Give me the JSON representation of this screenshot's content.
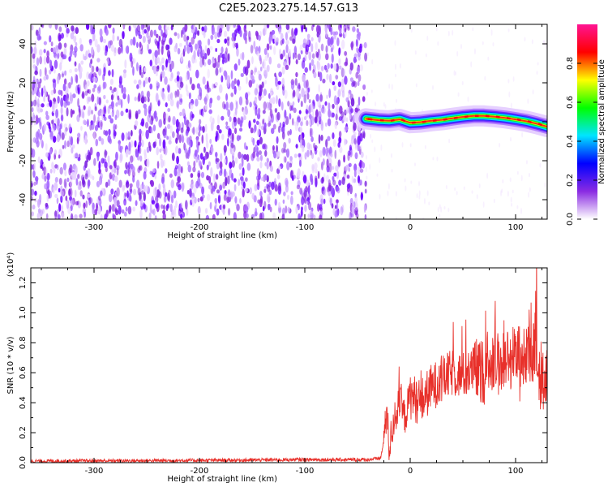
{
  "title": "C2E5.2023.275.14.57.G13",
  "chart_data": [
    {
      "type": "heatmap",
      "xlabel": "Height of straight line (km)",
      "ylabel": "Frequency (Hz)",
      "xlim": [
        -360,
        130
      ],
      "ylim": [
        -50,
        50
      ],
      "x_ticks": [
        -300,
        -200,
        -100,
        0,
        100
      ],
      "x_tick_labels": [
        "-300",
        "-200",
        "-100",
        "0",
        "100"
      ],
      "y_ticks": [
        -40,
        -20,
        0,
        20,
        40
      ],
      "y_tick_labels": [
        "-40",
        "-20",
        "0",
        "20",
        "40"
      ],
      "noise_region_x": [
        -360,
        -42
      ],
      "signal_region_x": [
        -42,
        130
      ],
      "signal_track": [
        {
          "x": -42,
          "freq": 1.5
        },
        {
          "x": -30,
          "freq": 0.8
        },
        {
          "x": -20,
          "freq": 0.5
        },
        {
          "x": -10,
          "freq": 1.2
        },
        {
          "x": 0,
          "freq": -0.5
        },
        {
          "x": 10,
          "freq": -0.2
        },
        {
          "x": 20,
          "freq": 0.5
        },
        {
          "x": 30,
          "freq": 1.0
        },
        {
          "x": 40,
          "freq": 1.8
        },
        {
          "x": 50,
          "freq": 2.5
        },
        {
          "x": 60,
          "freq": 3.0
        },
        {
          "x": 70,
          "freq": 3.0
        },
        {
          "x": 80,
          "freq": 2.6
        },
        {
          "x": 90,
          "freq": 2.0
        },
        {
          "x": 100,
          "freq": 1.2
        },
        {
          "x": 110,
          "freq": 0.3
        },
        {
          "x": 120,
          "freq": -1.0
        },
        {
          "x": 130,
          "freq": -2.5
        }
      ],
      "colorbar": {
        "label": "Normalized spectral amplitude",
        "range": [
          0,
          1
        ],
        "ticks": [
          0.0,
          0.2,
          0.4,
          0.6,
          0.8
        ],
        "tick_labels": [
          "0.0",
          "0.2",
          "0.4",
          "0.6",
          "0.8"
        ],
        "colors": [
          "#ffffff",
          "#8a2be2",
          "#0000ff",
          "#00e5ff",
          "#00ff00",
          "#ffff00",
          "#ff0000",
          "#ff1493"
        ]
      }
    },
    {
      "type": "line",
      "xlabel": "Height of straight line (km)",
      "ylabel": "SNR (10 * v/v)",
      "y_multiplier_label": "(x10⁴)",
      "xlim": [
        -360,
        130
      ],
      "ylim": [
        0,
        1.3
      ],
      "x_ticks": [
        -300,
        -200,
        -100,
        0,
        100
      ],
      "x_tick_labels": [
        "-300",
        "-200",
        "-100",
        "0",
        "100"
      ],
      "y_ticks": [
        0.0,
        0.2,
        0.4,
        0.6,
        0.8,
        1.0,
        1.2
      ],
      "y_tick_labels": [
        "0.0",
        "0.2",
        "0.4",
        "0.6",
        "0.8",
        "1.0",
        "1.2"
      ],
      "color": "#e8302a",
      "series": [
        {
          "x": [
            -360,
            -300,
            -200,
            -100,
            -40,
            -28,
            -25,
            -22,
            -20,
            -15,
            -10,
            -5,
            0,
            10,
            20,
            30,
            40,
            50,
            60,
            70,
            75,
            80,
            90,
            100,
            110,
            120,
            125,
            130
          ],
          "y": [
            0.01,
            0.012,
            0.015,
            0.02,
            0.02,
            0.03,
            0.15,
            0.35,
            0.1,
            0.3,
            0.4,
            0.3,
            0.45,
            0.4,
            0.5,
            0.55,
            0.6,
            0.58,
            0.62,
            0.6,
            0.7,
            0.65,
            0.68,
            0.72,
            0.7,
            0.75,
            0.5,
            0.6
          ]
        }
      ]
    }
  ]
}
